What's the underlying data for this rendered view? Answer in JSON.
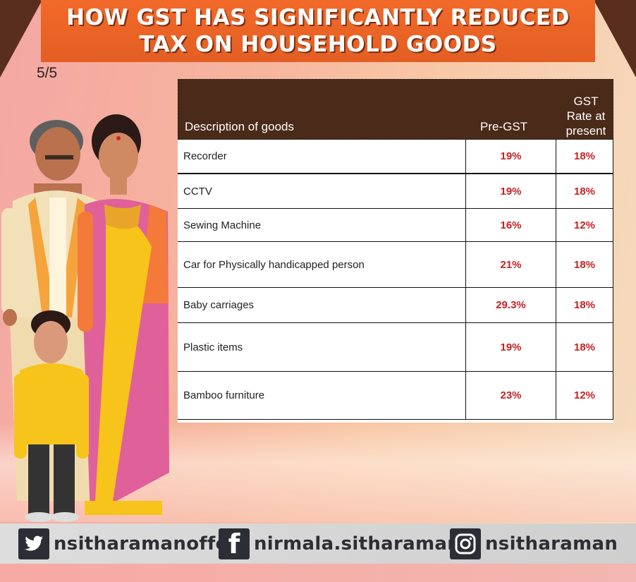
{
  "banner": {
    "line1": "HOW GST HAS SIGNIFICANTLY REDUCED",
    "line2": "TAX ON HOUSEHOLD GOODS"
  },
  "page_counter": "5/5",
  "table": {
    "headers": {
      "description": "Description of goods",
      "pre_gst": "Pre-GST",
      "rate_line1": "GST",
      "rate_line2": "Rate at",
      "rate_line3": "present"
    },
    "rows": [
      {
        "item": "Recorder",
        "pre_gst": "19%",
        "present": "18%"
      },
      {
        "item": "CCTV",
        "pre_gst": "19%",
        "present": "18%"
      },
      {
        "item": "Sewing Machine",
        "pre_gst": "16%",
        "present": "12%"
      },
      {
        "item": "Car for Physically handicapped person",
        "pre_gst": "21%",
        "present": "18%"
      },
      {
        "item": "Baby carriages",
        "pre_gst": "29.3%",
        "present": "18%"
      },
      {
        "item": "Plastic items",
        "pre_gst": "19%",
        "present": "18%"
      },
      {
        "item": "Bamboo furniture",
        "pre_gst": "23%",
        "present": "12%"
      }
    ]
  },
  "footer": {
    "twitter": {
      "icon": "twitter-icon",
      "handle": "nsitharamanoffc"
    },
    "facebook": {
      "icon": "facebook-icon",
      "handle": "nirmala.sitharaman"
    },
    "instagram": {
      "icon": "instagram-icon",
      "handle": "nsitharaman"
    }
  },
  "colors": {
    "banner": "#f26a2a",
    "table_header": "#4a2a18",
    "rate_text": "#c42222"
  }
}
